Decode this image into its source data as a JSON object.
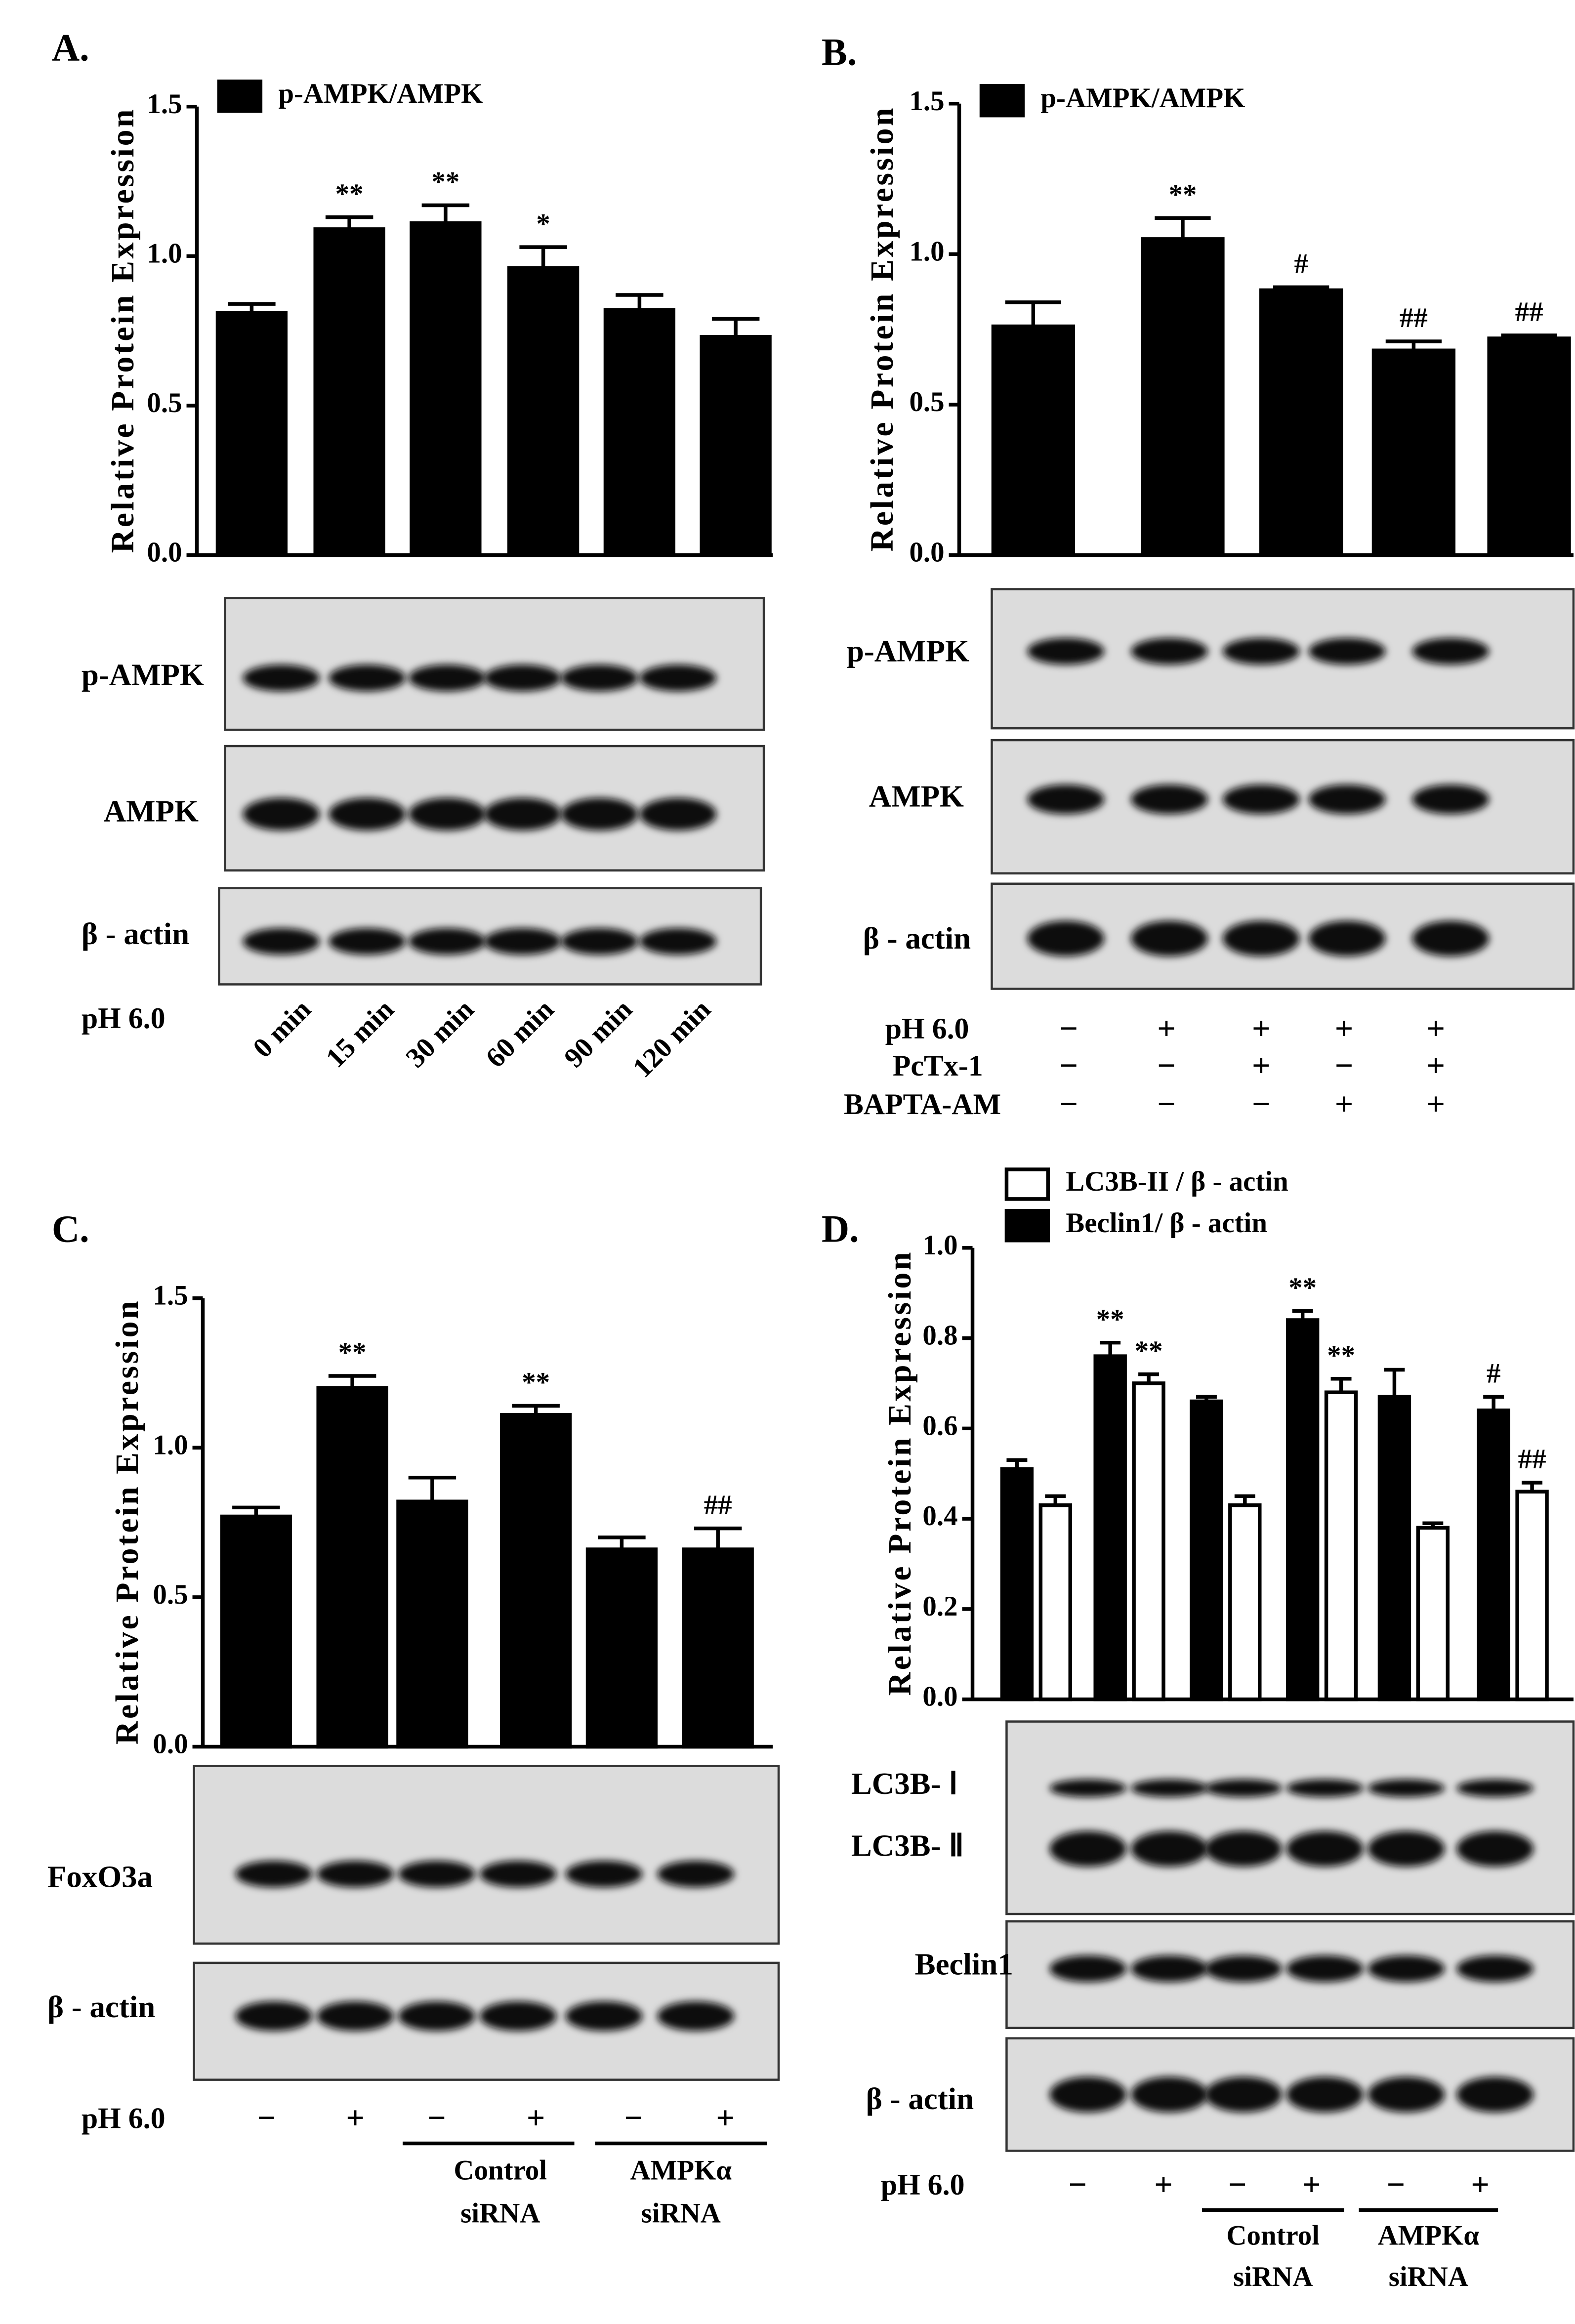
{
  "chart_data": [
    {
      "type": "bar",
      "panel_label": "A.",
      "y_label": "Relative Protein Expression",
      "ylim": [
        0,
        1.5
      ],
      "yticks": [
        {
          "value": 0,
          "label": "0.0"
        },
        0.5,
        {
          "value": 1,
          "label": "1.0"
        },
        1.5
      ],
      "series": [
        {
          "name": "p-AMPK/AMPK",
          "color": "#000000",
          "values": [
            0.81,
            1.09,
            1.11,
            0.96,
            0.82,
            0.73
          ],
          "errors": [
            0.03,
            0.04,
            0.06,
            0.07,
            0.05,
            0.06
          ],
          "annotations": [
            null,
            "**",
            "**",
            "*",
            null,
            null
          ]
        }
      ],
      "blot_labels": [
        "p-AMPK",
        "AMPK",
        "β - actin"
      ],
      "treatments": [
        {
          "label": "pH 6.0",
          "signs": []
        }
      ],
      "categories": [
        "0 min",
        "15 min",
        "30 min",
        "60 min",
        "90 min",
        "120 min"
      ]
    },
    {
      "type": "bar",
      "panel_label": "B.",
      "y_label": "Relative Protein Expression",
      "ylim": [
        0,
        1.5
      ],
      "yticks": [
        {
          "value": 0,
          "label": "0.0"
        },
        0.5,
        {
          "value": 1,
          "label": "1.0"
        },
        1.5
      ],
      "series": [
        {
          "name": "p-AMPK/AMPK",
          "color": "#000000",
          "values": [
            0.76,
            1.05,
            0.88,
            0.68,
            0.72
          ],
          "errors": [
            0.08,
            0.07,
            0.01,
            0.03,
            0.01
          ],
          "annotations": [
            null,
            "**",
            "#",
            "##",
            "##"
          ]
        }
      ],
      "blot_labels": [
        "p-AMPK",
        "AMPK",
        "β - actin"
      ],
      "treatments": [
        {
          "label": "pH 6.0",
          "signs": [
            "−",
            "+",
            "+",
            "+",
            "+"
          ]
        },
        {
          "label": "PcTx-1",
          "signs": [
            "−",
            "−",
            "+",
            "−",
            "+"
          ]
        },
        {
          "label": "BAPTA-AM",
          "signs": [
            "−",
            "−",
            "−",
            "+",
            "+"
          ]
        }
      ]
    },
    {
      "type": "bar",
      "panel_label": "C.",
      "y_label": "Relative Protein Expression",
      "ylim": [
        0,
        1.5
      ],
      "yticks": [
        {
          "value": 0,
          "label": "0.0"
        },
        0.5,
        {
          "value": 1,
          "label": "1.0"
        },
        1.5
      ],
      "series": [
        {
          "name": null,
          "color": "#000000",
          "values": [
            0.77,
            1.2,
            0.82,
            1.11,
            0.66,
            0.66
          ],
          "errors": [
            0.03,
            0.04,
            0.08,
            0.03,
            0.04,
            0.07
          ],
          "annotations": [
            null,
            "**",
            null,
            "**",
            null,
            "##"
          ]
        }
      ],
      "blot_labels": [
        "FoxO3a",
        "β - actin"
      ],
      "treatments": [
        {
          "label": "pH 6.0",
          "signs": [
            "−",
            "+",
            "−",
            "+",
            "−",
            "+"
          ]
        }
      ],
      "groups": [
        {
          "lines": [
            "Control",
            "siRNA"
          ]
        },
        {
          "lines": [
            "AMPKα",
            "siRNA"
          ]
        }
      ]
    },
    {
      "type": "bar",
      "panel_label": "D.",
      "y_label": "Relative Protein Expression",
      "ylim": [
        0,
        1
      ],
      "yticks": [
        {
          "value": 0,
          "label": "0.0"
        },
        0.2,
        0.4,
        0.6,
        0.8,
        {
          "value": 1,
          "label": "1.0"
        }
      ],
      "series": [
        {
          "name": "Beclin1/ β - actin",
          "color": "#000000",
          "values": [
            0.51,
            0.76,
            0.66,
            0.84,
            0.67,
            0.64
          ],
          "errors": [
            0.02,
            0.03,
            0.01,
            0.02,
            0.06,
            0.03
          ],
          "annotations": [
            null,
            "**",
            null,
            "**",
            null,
            "#"
          ]
        },
        {
          "name": "LC3B-II / β - actin",
          "color": "#ffffff",
          "values": [
            0.43,
            0.7,
            0.43,
            0.68,
            0.38,
            0.46
          ],
          "errors": [
            0.02,
            0.02,
            0.02,
            0.03,
            0.01,
            0.02
          ],
          "annotations": [
            null,
            "**",
            null,
            "**",
            null,
            "##"
          ]
        }
      ],
      "blot_labels": [
        "LC3B- Ⅰ",
        "LC3B- Ⅱ",
        "Beclin1",
        "β - actin"
      ],
      "treatments": [
        {
          "label": "pH 6.0",
          "signs": [
            "−",
            "+",
            "−",
            "+",
            "−",
            "+"
          ]
        }
      ],
      "groups": [
        {
          "lines": [
            "Control",
            "siRNA"
          ]
        },
        {
          "lines": [
            "AMPKα",
            "siRNA"
          ]
        }
      ]
    }
  ]
}
